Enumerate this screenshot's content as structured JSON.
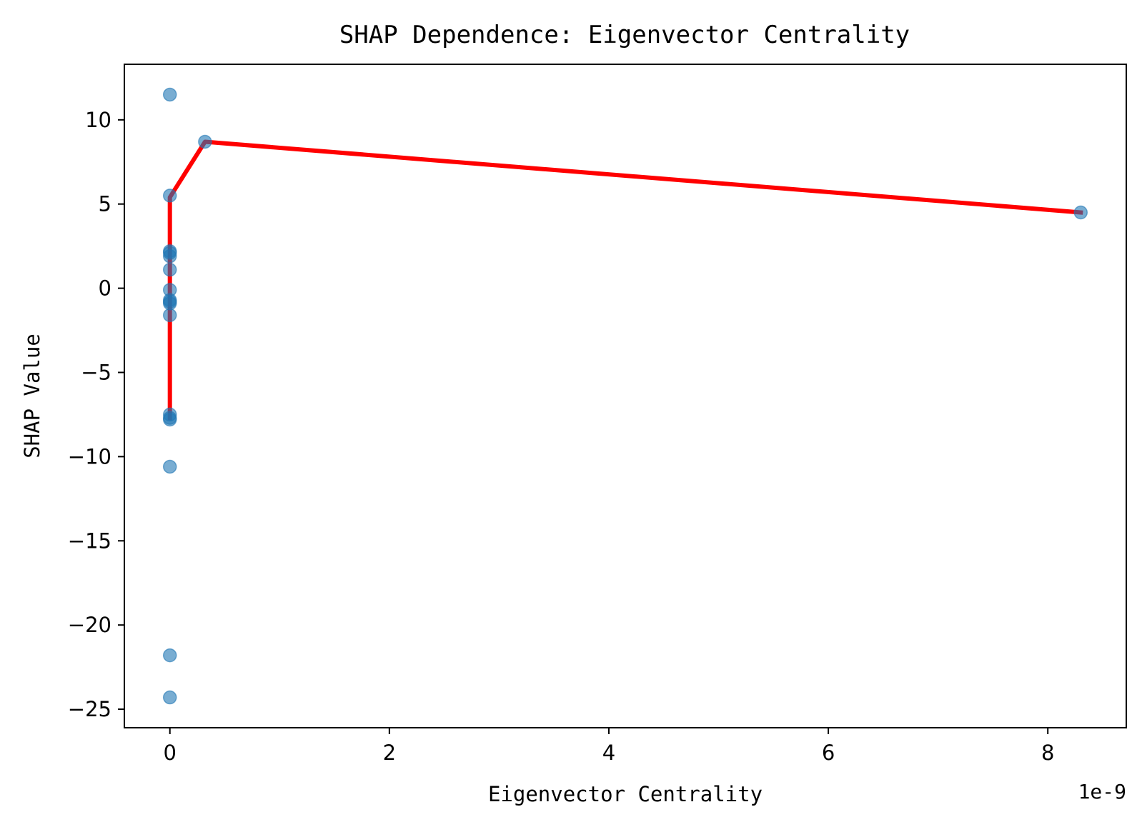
{
  "chart_data": {
    "type": "scatter",
    "title": "SHAP Dependence: Eigenvector Centrality",
    "xlabel": "Eigenvector Centrality",
    "ylabel": "SHAP Value",
    "x_offset_label": "1e-9",
    "x_scale_exponent": -9,
    "xlim": [
      -0.415,
      8.715
    ],
    "ylim": [
      -26.1,
      13.3
    ],
    "x_ticks": [
      0,
      2,
      4,
      6,
      8
    ],
    "x_tick_labels": [
      "0",
      "2",
      "4",
      "6",
      "8"
    ],
    "y_ticks": [
      10,
      5,
      0,
      -5,
      -10,
      -15,
      -20,
      -25
    ],
    "y_tick_labels": [
      "10",
      "5",
      "0",
      "−5",
      "−10",
      "−15",
      "−20",
      "−25"
    ],
    "grid": false,
    "point_color": "#1f77b4",
    "line_color": "#ff0000",
    "points": [
      {
        "x": 0.0,
        "y": 11.5
      },
      {
        "x": 0.32,
        "y": 8.7
      },
      {
        "x": 0.0,
        "y": 5.5
      },
      {
        "x": 0.0,
        "y": 2.2
      },
      {
        "x": 0.0,
        "y": 2.1
      },
      {
        "x": 0.0,
        "y": 1.9
      },
      {
        "x": 0.0,
        "y": 1.1
      },
      {
        "x": 0.0,
        "y": -0.1
      },
      {
        "x": 0.0,
        "y": -0.7
      },
      {
        "x": 0.0,
        "y": -0.8
      },
      {
        "x": 0.0,
        "y": -0.9
      },
      {
        "x": 0.0,
        "y": -1.6
      },
      {
        "x": 0.0,
        "y": -7.5
      },
      {
        "x": 0.0,
        "y": -7.7
      },
      {
        "x": 0.0,
        "y": -7.8
      },
      {
        "x": 0.0,
        "y": -10.6
      },
      {
        "x": 0.0,
        "y": -21.8
      },
      {
        "x": 0.0,
        "y": -24.3
      },
      {
        "x": 8.3,
        "y": 4.5
      }
    ],
    "trend_line": [
      {
        "x": 0.0,
        "y": -7.7
      },
      {
        "x": 0.0,
        "y": 5.4
      },
      {
        "x": 0.32,
        "y": 8.7
      },
      {
        "x": 8.3,
        "y": 4.5
      }
    ]
  }
}
